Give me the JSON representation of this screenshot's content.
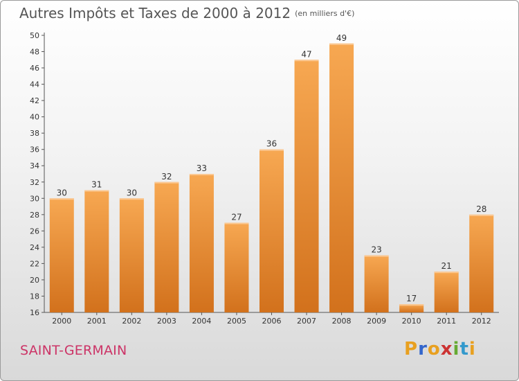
{
  "title": "Autres Impôts et Taxes de 2000 à 2012",
  "unit": "(en milliers d'€)",
  "place": "SAINT-GERMAIN",
  "logo": {
    "letters": [
      "P",
      "r",
      "o",
      "x",
      "i",
      "t",
      "i"
    ],
    "colors": [
      "#e8a020",
      "#3366cc",
      "#e8a020",
      "#cc3333",
      "#66aa33",
      "#3399cc",
      "#e8a020"
    ]
  },
  "chart_data": {
    "type": "bar",
    "title": "Autres Impôts et Taxes de 2000 à 2012",
    "ylabel": "",
    "xlabel": "",
    "categories": [
      "2000",
      "2001",
      "2002",
      "2003",
      "2004",
      "2005",
      "2006",
      "2007",
      "2008",
      "2009",
      "2010",
      "2011",
      "2012"
    ],
    "values": [
      30,
      31,
      30,
      32,
      33,
      27,
      36,
      47,
      49,
      23,
      17,
      21,
      28
    ],
    "ylim": [
      16,
      50
    ],
    "yticks": [
      16,
      18,
      20,
      22,
      24,
      26,
      28,
      30,
      32,
      34,
      36,
      38,
      40,
      42,
      44,
      46,
      48,
      50
    ],
    "grid": false,
    "colors": {
      "bar_light": "#f7a852",
      "bar_dark": "#d2711c",
      "axis": "#555555"
    }
  }
}
